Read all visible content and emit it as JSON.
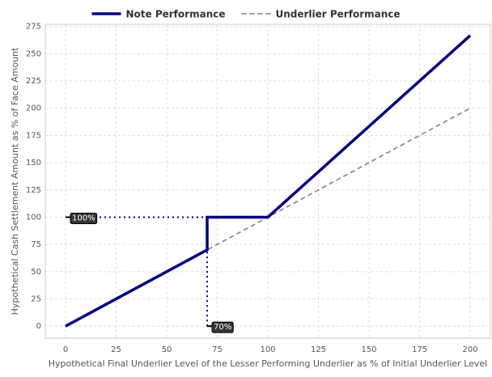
{
  "chart_data": {
    "type": "line",
    "x_label": "Hypothetical Final Underlier Level of the Lesser Performing Underlier as % of Initial Underlier Level",
    "y_label": "Hypothetical Cash Settlement Amount as % of Face Amount",
    "series": [
      {
        "name": "Note Performance",
        "color": "#000080",
        "dash": "solid",
        "x": [
          0,
          70,
          70,
          100,
          200
        ],
        "values": [
          0,
          70,
          100,
          100,
          266.67
        ]
      },
      {
        "name": "Underlier Performance",
        "color": "#8c8ca0",
        "dash": "dashed",
        "x": [
          0,
          200
        ],
        "values": [
          0,
          200
        ]
      }
    ],
    "xlim": [
      -10,
      210
    ],
    "xticks": [
      0,
      25,
      50,
      75,
      100,
      125,
      150,
      175,
      200
    ],
    "ylim": [
      -11,
      277
    ],
    "yticks": [
      0,
      25,
      50,
      75,
      100,
      125,
      150,
      175,
      200,
      225,
      250,
      275
    ],
    "grid": true,
    "legend": "top",
    "annotations": [
      {
        "text": "100%",
        "x": 0,
        "y": 100,
        "line_to": {
          "x": 70,
          "y": 100
        }
      },
      {
        "text": "70%",
        "x": 70,
        "y": 0,
        "line_to": {
          "x": 70,
          "y": 100
        }
      }
    ]
  }
}
